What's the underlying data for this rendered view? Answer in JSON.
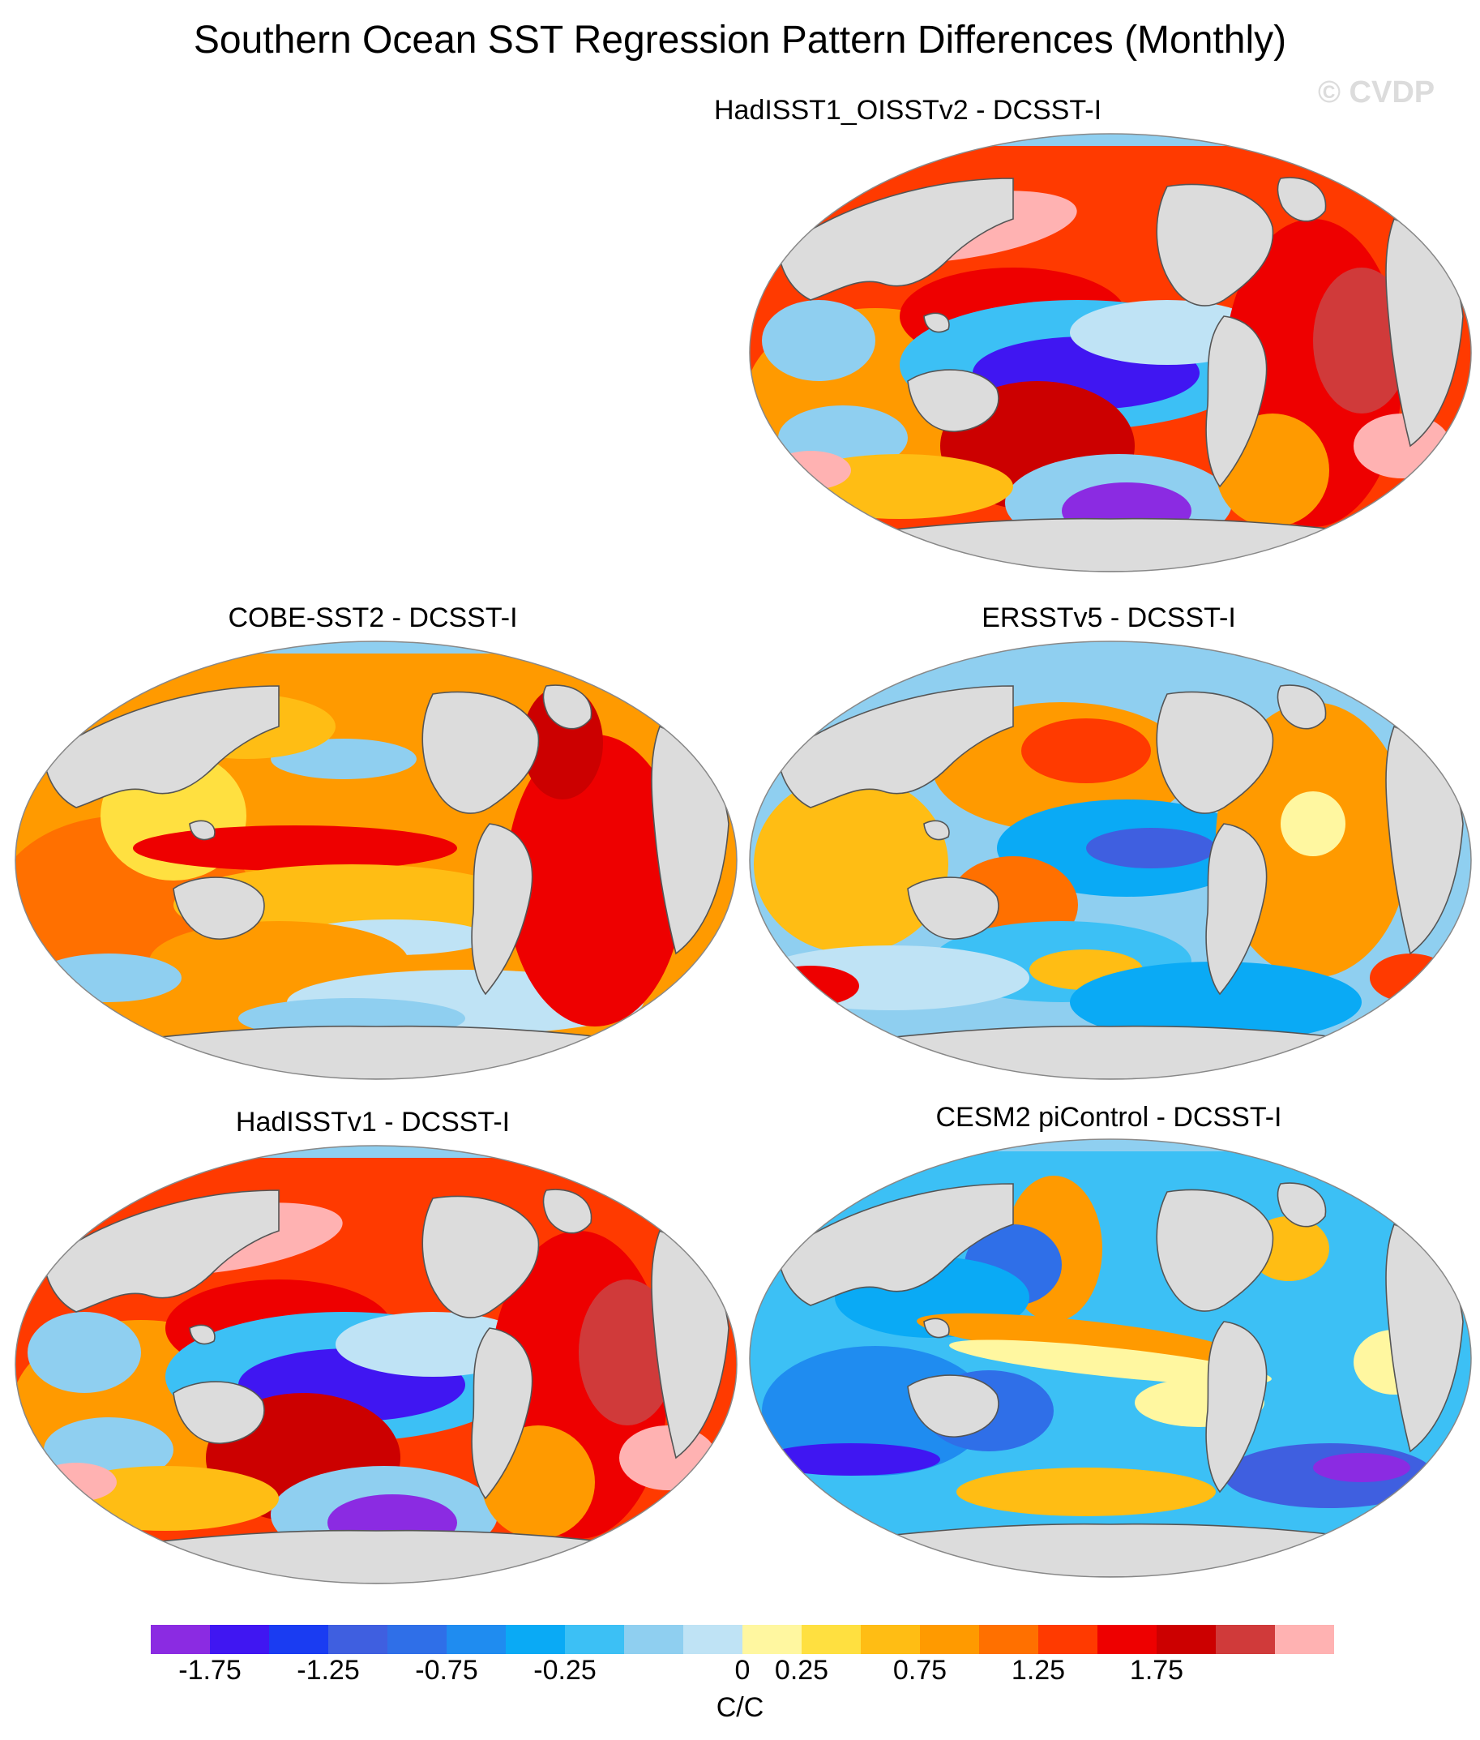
{
  "figure": {
    "title": "Southern Ocean SST Regression Pattern Differences (Monthly)",
    "watermark": "© CVDP"
  },
  "panels": [
    {
      "id": "hadisst-oisst",
      "title": "HadISST1_OISSTv2 - DCSST-I",
      "pattern": "warm-strong"
    },
    {
      "id": "cobe",
      "title": "COBE-SST2 - DCSST-I",
      "pattern": "warm-moderate"
    },
    {
      "id": "ersst",
      "title": "ERSSTv5 - DCSST-I",
      "pattern": "mixed"
    },
    {
      "id": "hadisstv1",
      "title": "HadISSTv1 - DCSST-I",
      "pattern": "warm-strong"
    },
    {
      "id": "cesm2",
      "title": "CESM2 piControl - DCSST-I",
      "pattern": "cool"
    }
  ],
  "colorbar": {
    "units": "C/C",
    "labels": [
      "-1.75",
      "-1.25",
      "-0.75",
      "-0.25",
      "0",
      "0.25",
      "0.75",
      "1.25",
      "1.75"
    ],
    "colors": [
      "#8b2be2",
      "#4016f2",
      "#1a3cf2",
      "#3f5fe0",
      "#2f6fe8",
      "#1f8cf0",
      "#0aaaf5",
      "#3cc0f5",
      "#8fcff0",
      "#bfe3f5",
      "#fff7a0",
      "#ffe040",
      "#ffbd14",
      "#ff9a00",
      "#ff7000",
      "#ff3a00",
      "#ee0000",
      "#cc0000",
      "#d03a3a",
      "#ffb2b2"
    ]
  },
  "colors": {
    "land": "#dcdcdc",
    "coast": "#555555"
  }
}
